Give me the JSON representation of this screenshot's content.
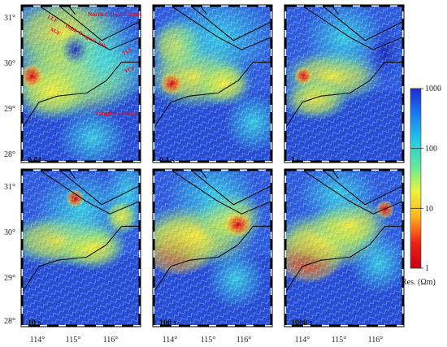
{
  "figure": {
    "panels": [
      {
        "period": "0.01 s"
      },
      {
        "period": "0.1 s"
      },
      {
        "period": "1 s"
      },
      {
        "period": "10 s"
      },
      {
        "period": "100 s"
      },
      {
        "period": "1000 s"
      }
    ],
    "lat_ticks": [
      "31°",
      "30°",
      "29°",
      "28°",
      "31°",
      "30°",
      "29°",
      "28°"
    ],
    "lon_ticks": [
      "114°",
      "115°",
      "116°",
      "114°",
      "115°",
      "116°",
      "114°",
      "115°",
      "116°"
    ],
    "annotations": {
      "north_china_craton": "North China Craton",
      "yangtze_craton": "Yangtze Craton",
      "llf": "LLF",
      "xgf": "XGF",
      "orogenic_belt": "Dabie Orogenic Belt",
      "tlf": "TLF",
      "ycf": "YCF"
    },
    "colorbar": {
      "ticks": [
        "1000",
        "100",
        "10",
        "1"
      ],
      "ticks_log": [
        3,
        2,
        1,
        0
      ],
      "title": "Res. (Ωm)",
      "colors": [
        "#1e2bd0",
        "#1a7cf0",
        "#22c9e6",
        "#5fe89a",
        "#e8f43c",
        "#ffb21c",
        "#ee2216",
        "#c80016"
      ]
    }
  }
}
